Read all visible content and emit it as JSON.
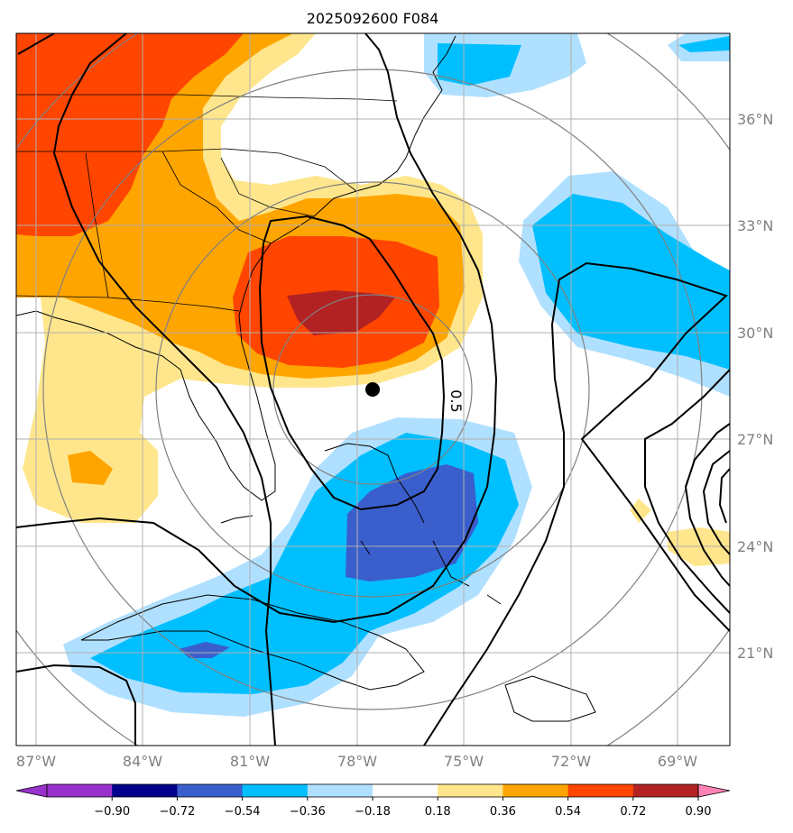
{
  "title": "2025092600 F084",
  "lon_labels": [
    "87°W",
    "84°W",
    "81°W",
    "78°W",
    "75°W",
    "72°W",
    "69°W"
  ],
  "lat_labels": [
    "36°N",
    "33°N",
    "30°N",
    "27°N",
    "24°N",
    "21°N"
  ],
  "contour_label": "0.5",
  "colorbar": {
    "ticks": [
      "−0.90",
      "−0.72",
      "−0.54",
      "−0.36",
      "−0.18",
      "0.18",
      "0.36",
      "0.54",
      "0.72",
      "0.90"
    ],
    "colors": [
      "#9932cc",
      "#00008b",
      "#3a5fcd",
      "#00bfff",
      "#b0e0ff",
      "#ffffff",
      "#ffe68c",
      "#ffa500",
      "#ff4500",
      "#b22222"
    ],
    "under_color": "#9932cc",
    "over_color": "#ff82b4"
  },
  "center_marker": {
    "lon": -77.7,
    "lat": 28.4
  }
}
